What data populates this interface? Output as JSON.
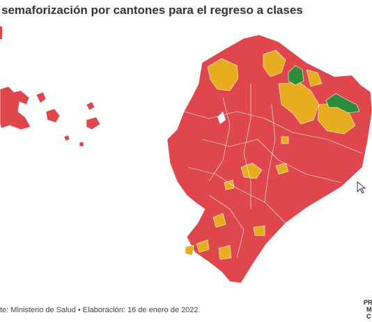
{
  "header": {
    "title": "semaforización por cantones para el regreso a clases"
  },
  "footer": {
    "source": "te: Ministerio de Salud • Elaboración: 16 de enero de 2022."
  },
  "logo": {
    "lines": [
      "PR",
      "M",
      "C"
    ]
  }
}
